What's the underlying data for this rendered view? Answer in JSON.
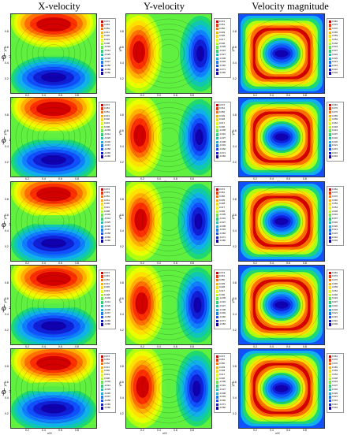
{
  "columns": [
    "X-velocity",
    "Y-velocity",
    "Velocity  magnitude"
  ],
  "rows": [
    {
      "label": "ϕ = 0"
    },
    {
      "label": "ϕ = 0.1"
    },
    {
      "label": "ϕ = 0.2"
    },
    {
      "label": "ϕ = 0.3"
    },
    {
      "label": "ϕ = 0.6"
    }
  ],
  "axes": {
    "xlabel": "x/X",
    "ylabel": "y/Y",
    "ticks": [
      "0.2",
      "0.4",
      "0.6",
      "0.8"
    ]
  },
  "palette": [
    "#d40000",
    "#ff3000",
    "#ff7000",
    "#ffb000",
    "#ffe000",
    "#e8ff00",
    "#b0ff10",
    "#60f040",
    "#20d870",
    "#10c8b0",
    "#10b0e8",
    "#1080ff",
    "#1050ff",
    "#1020d8",
    "#1000b0"
  ],
  "legend_levels": {
    "x": [
      "0.074",
      "0.063",
      "0.052",
      "0.041",
      "0.030",
      "0.019",
      "0.008",
      "-0.003",
      "-0.014",
      "-0.025",
      "-0.036",
      "-0.047",
      "-0.058",
      "-0.069",
      "-0.080"
    ],
    "y": [
      "0.072",
      "0.061",
      "0.050",
      "0.039",
      "0.028",
      "0.017",
      "0.006",
      "-0.005",
      "-0.016",
      "-0.027",
      "-0.038",
      "-0.049",
      "-0.060",
      "-0.071",
      "-0.082"
    ],
    "m": [
      "0.081",
      "0.076",
      "0.070",
      "0.065",
      "0.059",
      "0.054",
      "0.048",
      "0.043",
      "0.037",
      "0.032",
      "0.026",
      "0.021",
      "0.015",
      "0.010",
      "0.004"
    ]
  }
}
